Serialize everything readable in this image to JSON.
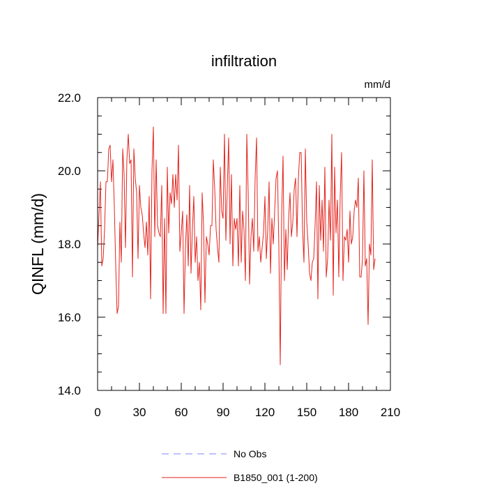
{
  "chart_data": {
    "type": "line",
    "title": "infiltration",
    "units_label": "mm/d",
    "ylabel": "QINFL  (mm/d)",
    "xlabel": "",
    "xlim": [
      0,
      210
    ],
    "ylim": [
      14.0,
      22.0
    ],
    "xticks": [
      0,
      30,
      60,
      90,
      120,
      150,
      180,
      210
    ],
    "xtick_labels": [
      "0",
      "30",
      "60",
      "90",
      "120",
      "150",
      "180",
      "210"
    ],
    "yticks": [
      14.0,
      16.0,
      18.0,
      20.0,
      22.0
    ],
    "ytick_labels": [
      "14.0",
      "16.0",
      "18.0",
      "20.0",
      "22.0"
    ],
    "grid": false,
    "legend_position": "bottom",
    "legend": [
      {
        "label": "No Obs",
        "color": "#8080ff",
        "dash": true
      },
      {
        "label": "B1850_001 (1-200)",
        "color": "#e3231c",
        "dash": false
      }
    ],
    "series": [
      {
        "name": "No Obs",
        "color": "#8080ff",
        "x": [],
        "values": []
      },
      {
        "name": "B1850_001 (1-200)",
        "color": "#e3231c",
        "x_start": 0,
        "x_step": 1,
        "values": [
          17.9,
          18.8,
          19.7,
          17.4,
          17.6,
          18.4,
          19.7,
          19.7,
          20.6,
          20.7,
          19.7,
          20.3,
          19.0,
          17.4,
          16.1,
          16.3,
          18.6,
          17.5,
          20.6,
          19.9,
          17.9,
          20.3,
          21.0,
          20.2,
          20.3,
          17.1,
          20.6,
          19.8,
          19.4,
          17.6,
          19.6,
          19.0,
          18.8,
          18.3,
          17.9,
          18.6,
          17.7,
          19.3,
          16.5,
          20.0,
          21.2,
          18.2,
          20.3,
          18.5,
          18.3,
          18.2,
          19.6,
          16.1,
          18.7,
          16.1,
          20.1,
          18.3,
          19.4,
          19.1,
          19.9,
          19.0,
          19.9,
          19.2,
          20.7,
          17.8,
          18.3,
          18.9,
          16.1,
          17.9,
          18.8,
          17.4,
          19.6,
          17.2,
          18.4,
          19.3,
          17.5,
          18.2,
          17.0,
          17.5,
          16.2,
          19.4,
          18.5,
          16.4,
          18.2,
          18.0,
          17.7,
          18.5,
          18.5,
          20.3,
          19.5,
          18.4,
          17.9,
          17.5,
          20.1,
          18.9,
          18.7,
          21.0,
          18.1,
          19.5,
          20.9,
          18.0,
          19.9,
          17.4,
          18.7,
          18.4,
          18.7,
          17.4,
          19.6,
          17.5,
          18.9,
          18.4,
          17.0,
          21.0,
          19.4,
          16.9,
          18.2,
          18.7,
          17.8,
          19.8,
          20.9,
          17.8,
          18.2,
          17.5,
          17.9,
          18.3,
          19.3,
          17.6,
          18.4,
          19.7,
          17.2,
          18.7,
          18.0,
          18.9,
          19.8,
          20.0,
          17.9,
          14.7,
          18.8,
          20.4,
          17.0,
          18.4,
          17.3,
          18.7,
          19.4,
          18.2,
          18.6,
          19.5,
          19.8,
          18.2,
          19.8,
          20.5,
          20.5,
          18.4,
          17.5,
          20.6,
          18.6,
          18.0,
          17.2,
          17.0,
          17.5,
          17.6,
          18.5,
          19.7,
          16.5,
          19.6,
          18.1,
          19.2,
          17.8,
          20.1,
          17.1,
          17.6,
          19.2,
          18.1,
          21.0,
          16.6,
          20.1,
          18.3,
          19.2,
          17.1,
          19.3,
          20.5,
          17.0,
          18.2,
          18.1,
          18.4,
          17.5,
          18.9,
          18.0,
          18.2,
          18.9,
          19.2,
          19.0,
          19.8,
          17.1,
          17.1,
          17.6,
          20.0,
          17.4,
          17.6,
          15.8,
          18.0,
          17.7,
          20.3,
          17.3,
          17.6
        ]
      }
    ]
  }
}
